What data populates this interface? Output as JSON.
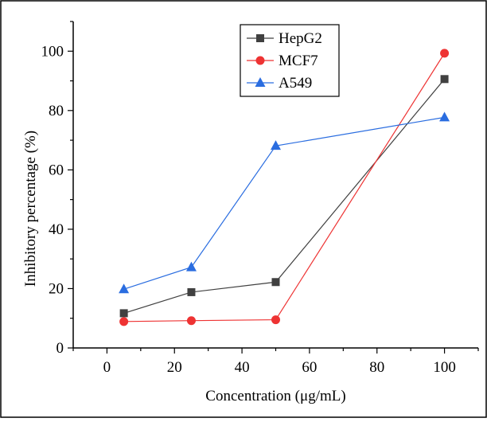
{
  "chart_data": {
    "type": "line",
    "xlabel": "Concentration (μg/mL)",
    "ylabel": "Inhibitory percentage (%)",
    "xlim": [
      -10,
      110
    ],
    "ylim": [
      0,
      110
    ],
    "x_ticks": [
      0,
      20,
      40,
      60,
      80,
      100
    ],
    "y_ticks": [
      0,
      20,
      40,
      60,
      80,
      100
    ],
    "grid": false,
    "legend_position": "top-center",
    "series": [
      {
        "name": "HepG2",
        "color": "#404040",
        "marker": "square",
        "x": [
          5,
          25,
          50,
          100
        ],
        "y": [
          11.7,
          18.8,
          22.2,
          90.6
        ]
      },
      {
        "name": "MCF7",
        "color": "#ee3333",
        "marker": "circle",
        "x": [
          5,
          25,
          50,
          100
        ],
        "y": [
          8.9,
          9.2,
          9.5,
          99.3
        ]
      },
      {
        "name": "A549",
        "color": "#2a6de0",
        "marker": "triangle",
        "x": [
          5,
          25,
          50,
          100
        ],
        "y": [
          19.8,
          27.2,
          68.1,
          77.7
        ]
      }
    ]
  }
}
